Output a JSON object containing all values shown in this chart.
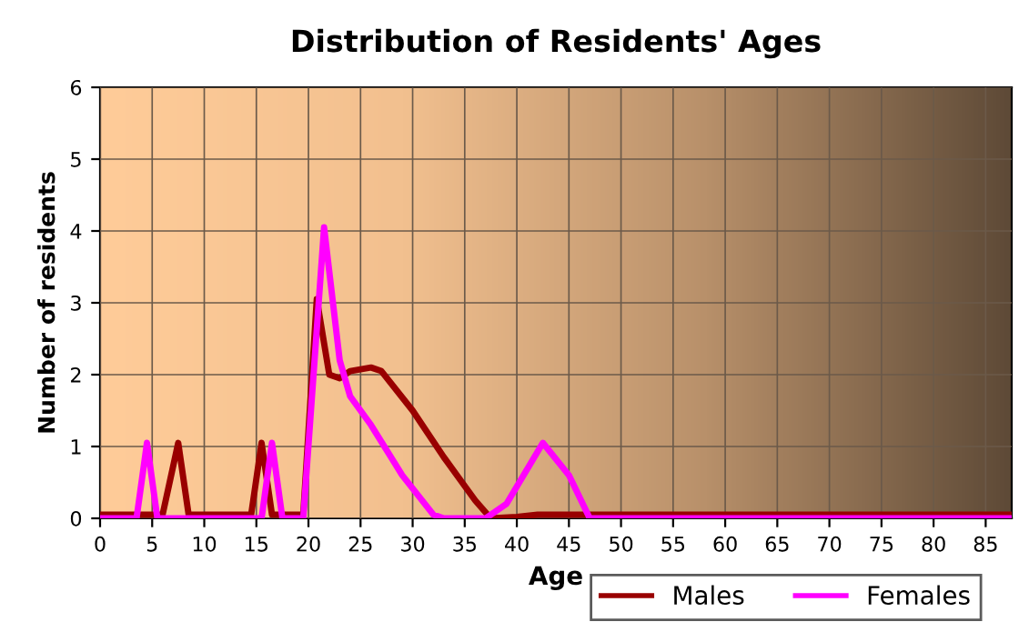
{
  "chart_data": {
    "type": "line",
    "title": "Distribution of Residents' Ages",
    "xlabel": "Age",
    "ylabel": "Number of residents",
    "xlim": [
      0,
      87.5
    ],
    "ylim": [
      0,
      6
    ],
    "xticks": [
      0,
      5,
      10,
      15,
      20,
      25,
      30,
      35,
      40,
      45,
      50,
      55,
      60,
      65,
      70,
      75,
      80,
      85
    ],
    "yticks": [
      0,
      1,
      2,
      3,
      4,
      5,
      6
    ],
    "grid": true,
    "legend": "bottom right",
    "line_style": "solid",
    "marker": "none",
    "series": [
      {
        "name": "Males",
        "color": "#990000",
        "x": [
          0,
          6,
          7.5,
          8.5,
          14.5,
          15.5,
          16.5,
          18,
          19.5,
          20.8,
          22,
          23,
          24,
          26,
          27,
          30,
          33,
          36,
          37.5,
          40,
          42,
          87.5
        ],
        "values": [
          0.05,
          0.05,
          1.05,
          0.05,
          0.05,
          1.05,
          0.05,
          0.05,
          0.05,
          3.05,
          2.0,
          1.95,
          2.05,
          2.1,
          2.05,
          1.5,
          0.85,
          0.25,
          0.0,
          0.02,
          0.05,
          0.05
        ]
      },
      {
        "name": "Females",
        "color": "#ff00ff",
        "x": [
          0,
          3.5,
          4.5,
          5.5,
          15.5,
          16.5,
          17.5,
          19.5,
          21.5,
          23,
          24,
          26,
          29,
          32,
          33,
          37,
          39,
          42.5,
          45,
          47,
          87.5
        ],
        "values": [
          0,
          0,
          1.05,
          0,
          0,
          1.05,
          0,
          0,
          4.05,
          2.2,
          1.7,
          1.3,
          0.6,
          0.05,
          0,
          0,
          0.2,
          1.05,
          0.6,
          0,
          0
        ]
      }
    ]
  }
}
